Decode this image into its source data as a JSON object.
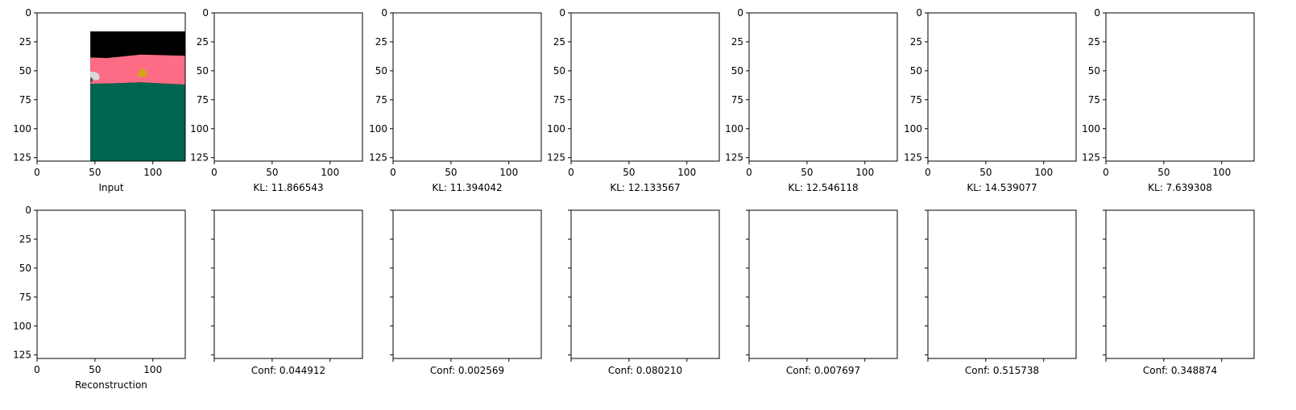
{
  "colors": {
    "background": "#ffffff",
    "sky_pink": "#fd6c85",
    "ground_green": "#006550",
    "mask_black": "#000000",
    "car_gray": "#d8d8d8",
    "bird_yellow": "#d4a514",
    "heat_dark": "#1a0000",
    "heat_red": "#8b0000",
    "heat_bright": "#ff3300",
    "heat_yellow": "#ffff00",
    "heat_white": "#fffff4"
  },
  "chart_data": [
    {
      "type": "image-grid",
      "ticks": [
        "0",
        "25",
        "50",
        "75",
        "100",
        "125"
      ],
      "xticks": [
        "0",
        "50",
        "100"
      ],
      "top_row": [
        {
          "caption": "Input",
          "kind": "input"
        },
        {
          "caption": "KL: 11.866543",
          "kind": "mask-car"
        },
        {
          "caption": "KL: 11.394042",
          "kind": "mask-bird"
        },
        {
          "caption": "KL: 12.133567",
          "kind": "mask-sky"
        },
        {
          "caption": "KL: 12.546118",
          "kind": "mask-car-faint"
        },
        {
          "caption": "KL: 14.539077",
          "kind": "mask-ground"
        },
        {
          "caption": "KL: 7.639308",
          "kind": "mask-residual"
        }
      ],
      "bottom_row": [
        {
          "caption": "Reconstruction",
          "kind": "recon"
        },
        {
          "caption": "Conf: 0.044912",
          "kind": "conf-car"
        },
        {
          "caption": "Conf: 0.002569",
          "kind": "conf-bird"
        },
        {
          "caption": "Conf: 0.080210",
          "kind": "conf-sky"
        },
        {
          "caption": "Conf: 0.007697",
          "kind": "conf-car2"
        },
        {
          "caption": "Conf: 0.515738",
          "kind": "conf-ground"
        },
        {
          "caption": "Conf: 0.348874",
          "kind": "conf-residual"
        }
      ],
      "x_range": [
        0,
        128
      ],
      "y_range": [
        0,
        128
      ]
    }
  ]
}
